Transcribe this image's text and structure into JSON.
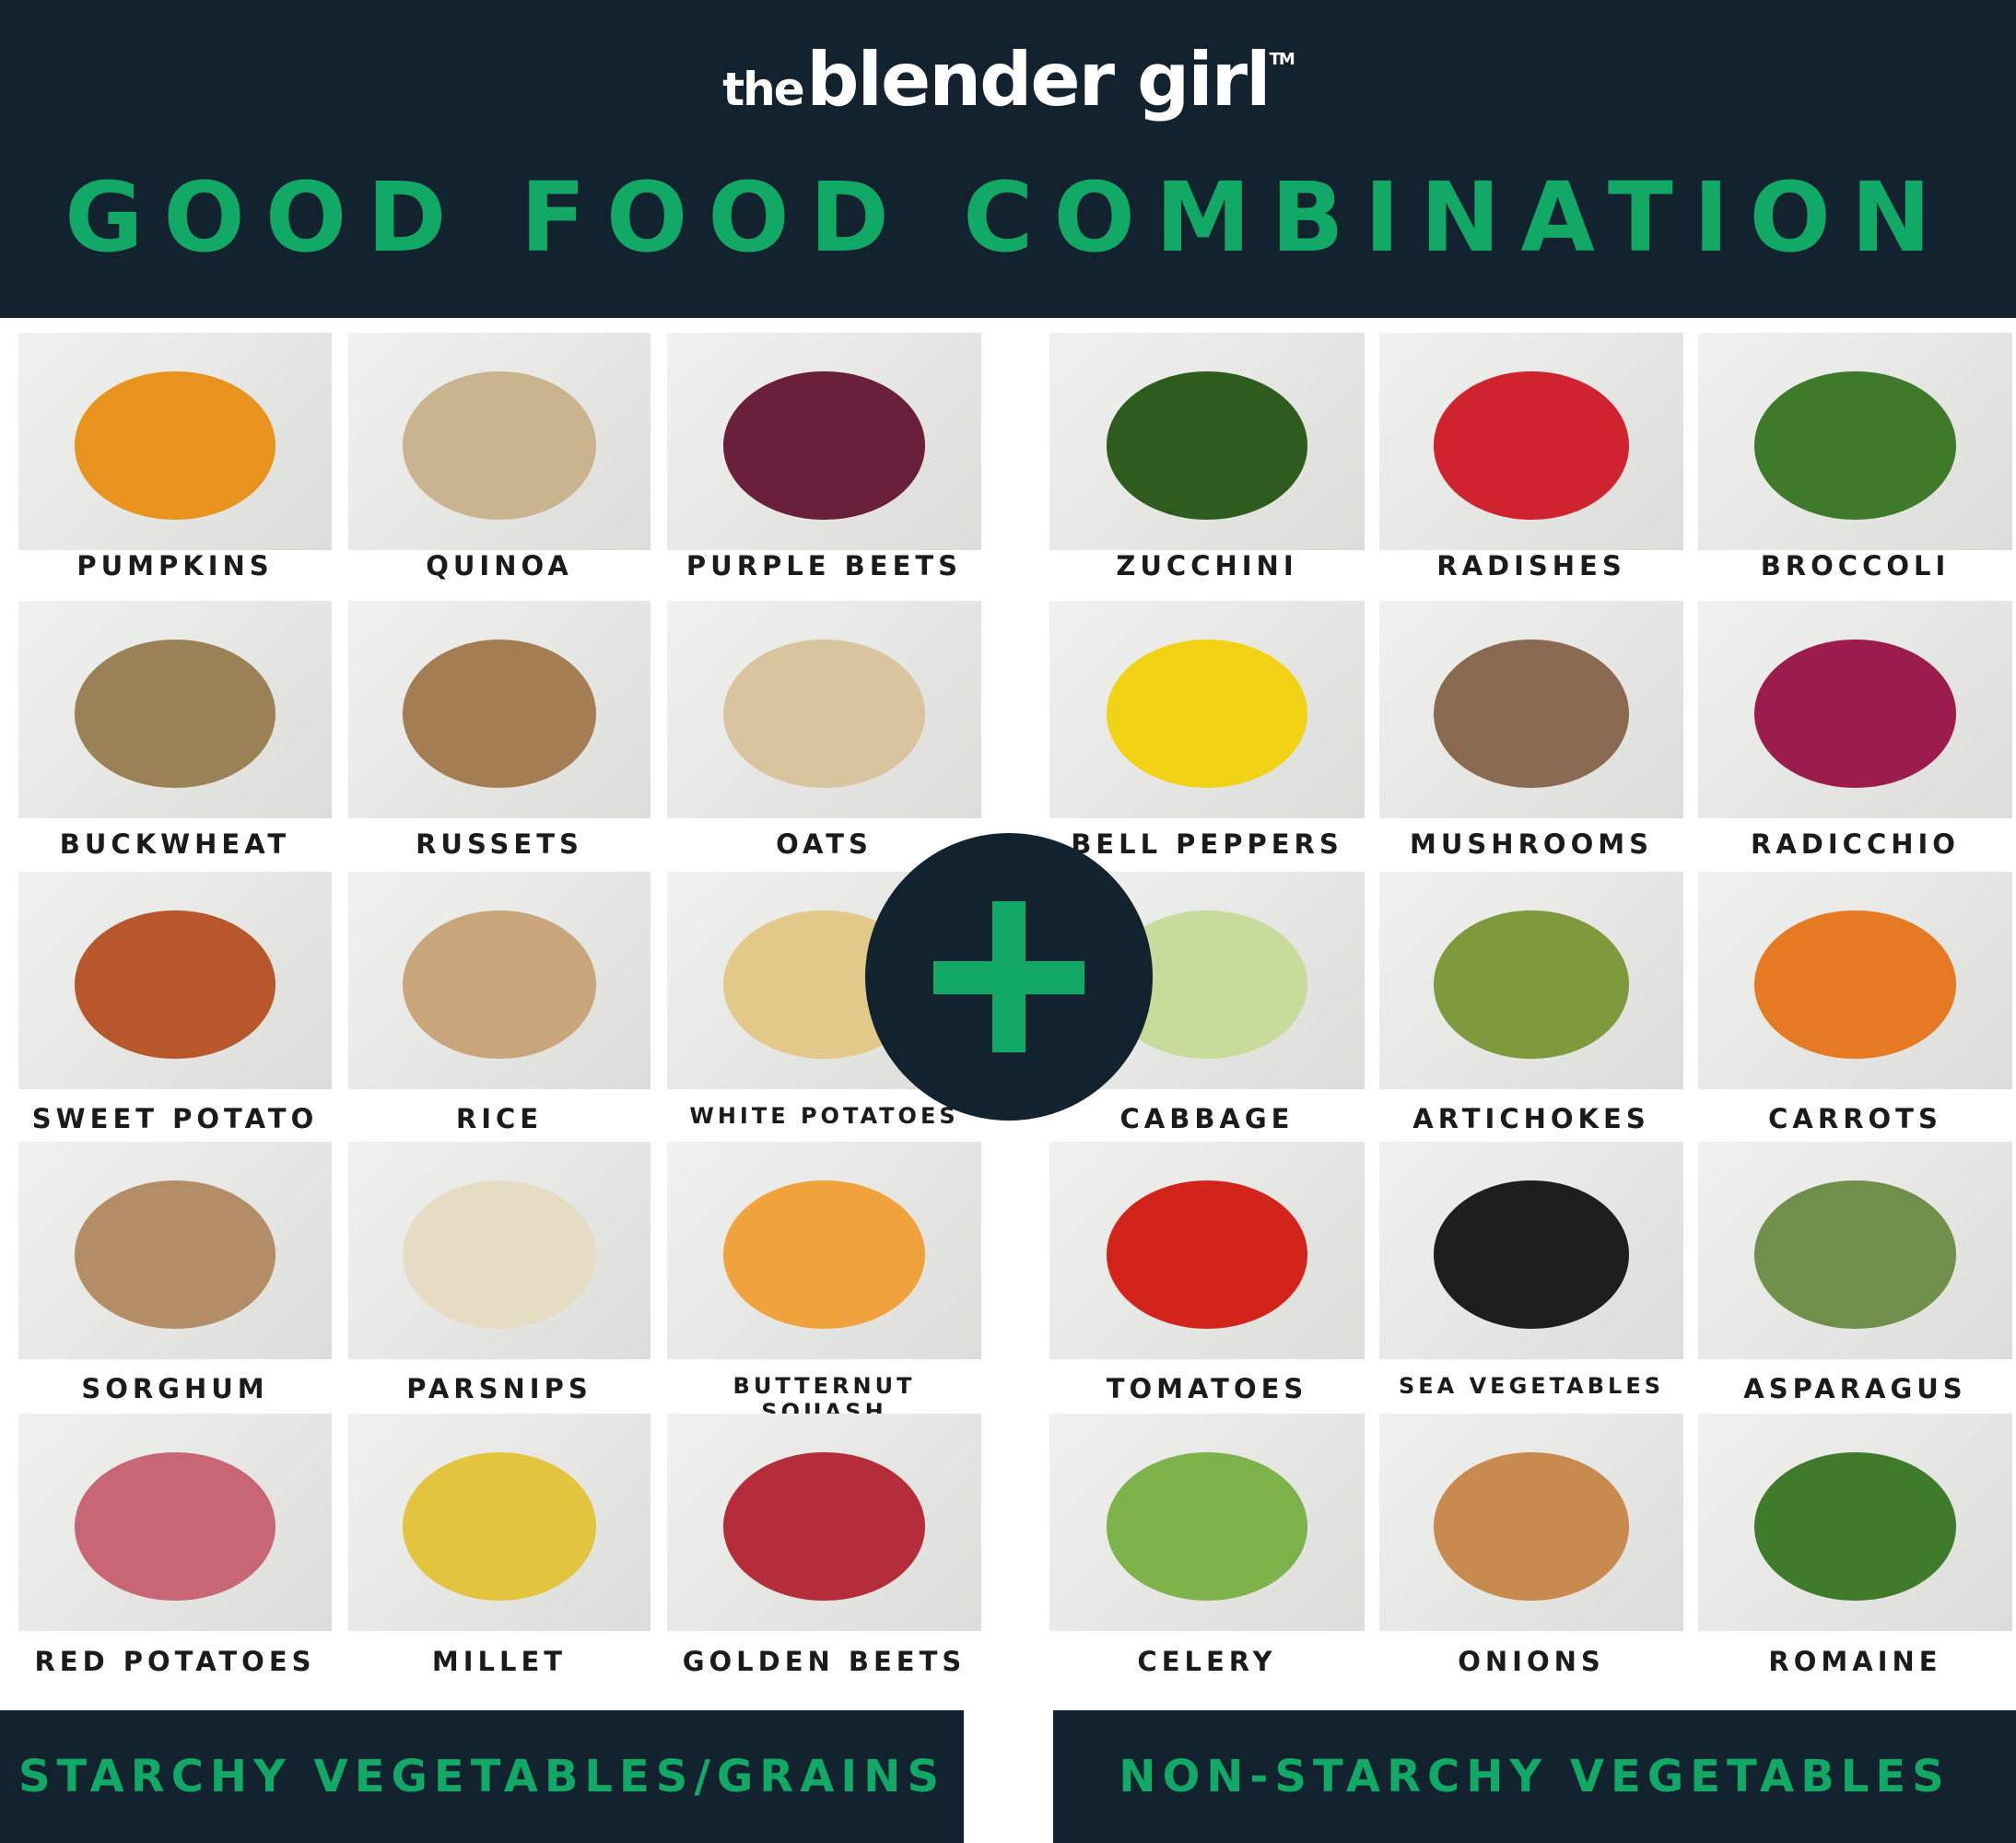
{
  "logo": {
    "the": "the",
    "main": "blender girl",
    "tm": "TM"
  },
  "title": "GOOD FOOD COMBINATION",
  "colors": {
    "dark": "#13222f",
    "green": "#12a866"
  },
  "left_group": {
    "footer": "STARCHY VEGETABLES/GRAINS",
    "items": [
      {
        "label": "PUMPKINS",
        "color": "#e8931e"
      },
      {
        "label": "QUINOA",
        "color": "#c9b48f"
      },
      {
        "label": "PURPLE BEETS",
        "color": "#6a1f3a"
      },
      {
        "label": "BUCKWHEAT",
        "color": "#9a8156"
      },
      {
        "label": "RUSSETS",
        "color": "#a57d53"
      },
      {
        "label": "OATS",
        "color": "#d9c4a0"
      },
      {
        "label": "SWEET POTATO",
        "color": "#b8572b"
      },
      {
        "label": "RICE",
        "color": "#c8a57a"
      },
      {
        "label": "WHITE POTATOES",
        "color": "#e2c98a"
      },
      {
        "label": "SORGHUM",
        "color": "#b38d65"
      },
      {
        "label": "PARSNIPS",
        "color": "#e6dcc4"
      },
      {
        "label": "BUTTERNUT SQUASH",
        "color": "#f0a23c"
      },
      {
        "label": "RED POTATOES",
        "color": "#c86675"
      },
      {
        "label": "MILLET",
        "color": "#e3c43e"
      },
      {
        "label": "GOLDEN BEETS",
        "color": "#b52c3a"
      }
    ]
  },
  "right_group": {
    "footer": "NON-STARCHY VEGETABLES",
    "items": [
      {
        "label": "ZUCCHINI",
        "color": "#2e5b1e"
      },
      {
        "label": "RADISHES",
        "color": "#cf2330"
      },
      {
        "label": "BROCCOLI",
        "color": "#3f7a2a"
      },
      {
        "label": "BELL PEPPERS",
        "color": "#f2d214"
      },
      {
        "label": "MUSHROOMS",
        "color": "#8a6a50"
      },
      {
        "label": "RADICCHIO",
        "color": "#9c1d4d"
      },
      {
        "label": "CABBAGE",
        "color": "#c7dc9a"
      },
      {
        "label": "ARTICHOKES",
        "color": "#7e9a3c"
      },
      {
        "label": "CARROTS",
        "color": "#e57a22"
      },
      {
        "label": "TOMATOES",
        "color": "#d3241c"
      },
      {
        "label": "SEA VEGETABLES",
        "color": "#1c1f1c"
      },
      {
        "label": "ASPARAGUS",
        "color": "#6f8f4a"
      },
      {
        "label": "CELERY",
        "color": "#7eb24a"
      },
      {
        "label": "ONIONS",
        "color": "#c88a4e"
      },
      {
        "label": "ROMAINE",
        "color": "#3f7b2a"
      }
    ]
  },
  "plus_icon": "plus-icon"
}
